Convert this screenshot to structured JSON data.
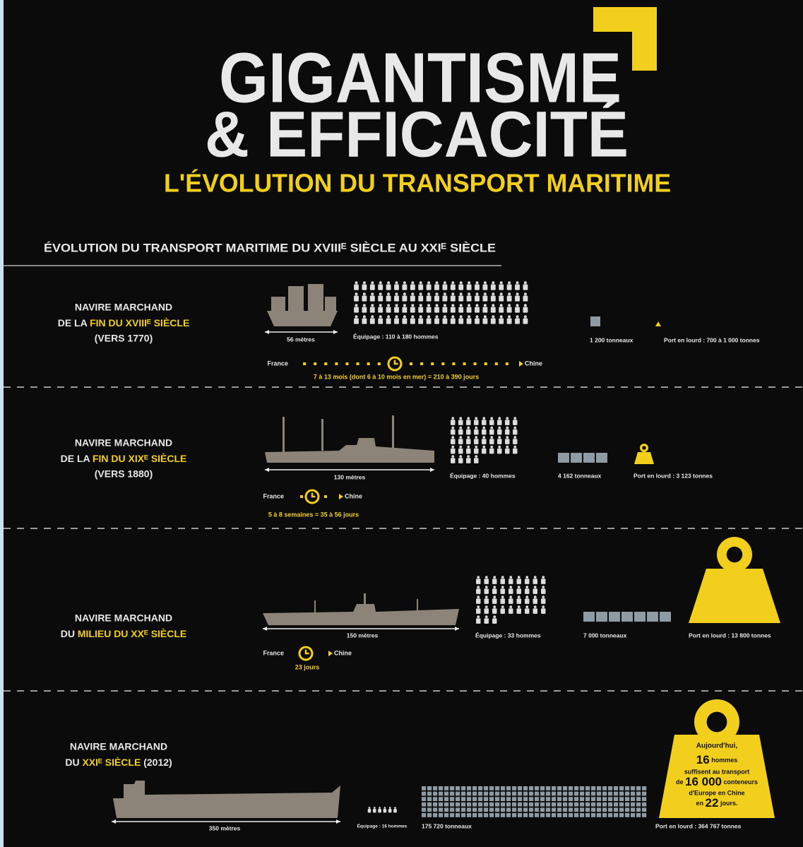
{
  "header": {
    "title_1": "GIGANTISME",
    "title_2": "& EFFICACITÉ",
    "subtitle": "L'ÉVOLUTION DU TRANSPORT MARITIME"
  },
  "section_title": "ÉVOLUTION DU TRANSPORT MARITIME DU XVIIIᴱ SIÈCLE AU XXIᴱ SIÈCLE",
  "ships": [
    {
      "label": {
        "line1": "NAVIRE MARCHAND",
        "prefix": "DE LA",
        "highlight": "FIN DU XVIIIᴱ SIÈCLE",
        "line3": "(VERS 1770)"
      },
      "length": "56 mètres",
      "crew": "Équipage : 110 à 180 hommes",
      "tonnage": "1 200 tonneaux",
      "deadweight": "Port en lourd : 700 à 1 000 tonnes",
      "route": {
        "from": "France",
        "to": "Chine",
        "duration": "7 à 13 mois (dont 6 à 10 mois en mer) = 210 à 390 jours"
      }
    },
    {
      "label": {
        "line1": "NAVIRE MARCHAND",
        "prefix": "DE LA",
        "highlight": "FIN DU XIXᴱ SIÈCLE",
        "line3": "(VERS 1880)"
      },
      "length": "130 mètres",
      "crew": "Équipage : 40 hommes",
      "tonnage": "4 162 tonneaux",
      "deadweight": "Port en lourd : 3 123 tonnes",
      "route": {
        "from": "France",
        "to": "Chine",
        "duration": "5 à 8 semaines = 35 à 56 jours"
      }
    },
    {
      "label": {
        "line1": "NAVIRE MARCHAND",
        "prefix": "DU",
        "highlight": "MILIEU DU XXᴱ SIÈCLE"
      },
      "length": "150 mètres",
      "crew": "Équipage : 33 hommes",
      "tonnage": "7 000 tonneaux",
      "deadweight": "Port en lourd : 13 800 tonnes",
      "route": {
        "from": "France",
        "to": "Chine",
        "duration": "23 jours"
      }
    },
    {
      "label": {
        "line1": "NAVIRE MARCHAND",
        "prefix": "DU",
        "highlight": "XXIᴱ SIÈCLE",
        "suffix": "(2012)"
      },
      "length": "350 mètres",
      "crew": "Équipage : 16 hommes",
      "tonnage": "175 720 tonneaux",
      "deadweight": "Port en lourd : 364 767 tonnes"
    }
  ],
  "callout": {
    "t1": "Aujourd'hui,",
    "n1": "16",
    "t2": "hommes",
    "t3": "suffisent au transport",
    "t4": "de",
    "n2": "16 000",
    "t5": "conteneurs",
    "t6": "d'Europe en Chine",
    "t7": "en",
    "n3": "22",
    "t8": "jours."
  }
}
